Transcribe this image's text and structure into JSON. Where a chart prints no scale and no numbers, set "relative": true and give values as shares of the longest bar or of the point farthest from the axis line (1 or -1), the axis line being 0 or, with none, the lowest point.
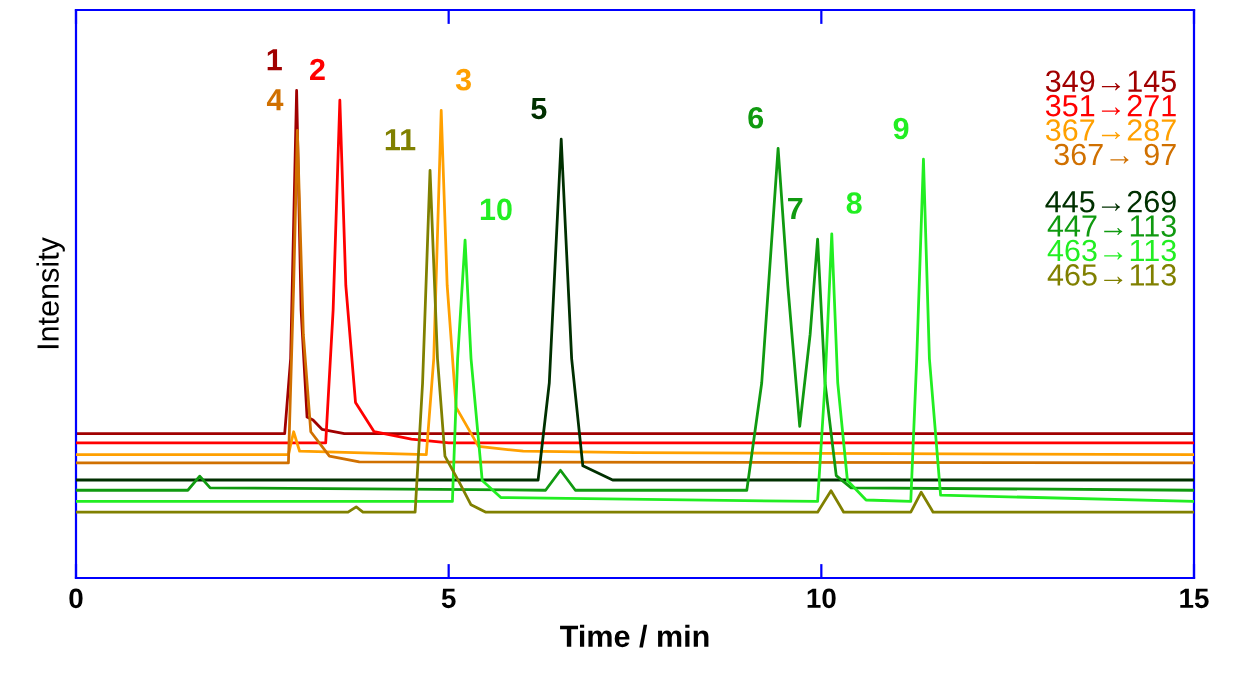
{
  "chart_data": {
    "type": "line",
    "relative": true,
    "xlabel": "Time / min",
    "ylabel": "Intensity",
    "xlim": [
      0,
      15
    ],
    "xticks": [
      0,
      5,
      10,
      15
    ],
    "tick_labels": "x",
    "grid": false,
    "legend": "top right",
    "marker": "none",
    "line_style": "solid",
    "series": [
      {
        "name": "349→145",
        "color": "#a00000",
        "x": [
          0,
          2.8,
          2.88,
          2.96,
          3.02,
          3.1,
          3.18,
          3.3,
          3.6,
          15
        ],
        "values": [
          0.296,
          0.296,
          0.45,
          1.0,
          0.55,
          0.33,
          0.324,
          0.305,
          0.296,
          0.296
        ]
      },
      {
        "name": "351→271",
        "color": "#ff0000",
        "x": [
          0,
          3.35,
          3.45,
          3.54,
          3.62,
          3.75,
          4.0,
          4.5,
          5,
          15
        ],
        "values": [
          0.277,
          0.277,
          0.55,
          0.98,
          0.6,
          0.36,
          0.3,
          0.285,
          0.277,
          0.277
        ]
      },
      {
        "name": "367→287",
        "color": "#ffa000",
        "x": [
          0,
          2.85,
          2.92,
          3.0,
          4.7,
          4.8,
          4.9,
          4.98,
          5.1,
          5.4,
          6,
          7.5,
          15
        ],
        "values": [
          0.253,
          0.253,
          0.3,
          0.26,
          0.253,
          0.45,
          0.959,
          0.6,
          0.35,
          0.27,
          0.26,
          0.257,
          0.253
        ]
      },
      {
        "name": "367→ 97",
        "color": "#d07000",
        "x": [
          0,
          2.85,
          2.92,
          2.97,
          3.05,
          3.15,
          3.4,
          3.8,
          15
        ],
        "values": [
          0.236,
          0.236,
          0.6,
          0.918,
          0.5,
          0.3,
          0.25,
          0.238,
          0.236
        ]
      },
      {
        "name": "445→269",
        "color": "#003000",
        "x": [
          0,
          6.2,
          6.35,
          6.51,
          6.65,
          6.8,
          7.2,
          15
        ],
        "values": [
          0.201,
          0.201,
          0.4,
          0.9,
          0.45,
          0.23,
          0.201,
          0.201
        ]
      },
      {
        "name": "447→113",
        "color": "#109a10",
        "x": [
          0,
          1.5,
          1.66,
          1.8,
          6.3,
          6.5,
          6.7,
          9.0,
          9.2,
          9.42,
          9.55,
          9.71,
          9.85,
          9.95,
          10.05,
          10.2,
          10.4,
          15
        ],
        "values": [
          0.18,
          0.18,
          0.209,
          0.185,
          0.18,
          0.221,
          0.18,
          0.18,
          0.4,
          0.881,
          0.6,
          0.311,
          0.5,
          0.695,
          0.4,
          0.21,
          0.185,
          0.18
        ]
      },
      {
        "name": "463→113",
        "color": "#22ee22",
        "x": [
          0,
          5.05,
          5.12,
          5.22,
          5.3,
          5.45,
          5.7,
          9.95,
          10.05,
          10.14,
          10.22,
          10.35,
          10.6,
          11.2,
          11.28,
          11.37,
          11.45,
          11.6,
          15
        ],
        "values": [
          0.157,
          0.157,
          0.45,
          0.693,
          0.45,
          0.2,
          0.165,
          0.157,
          0.4,
          0.706,
          0.4,
          0.2,
          0.16,
          0.157,
          0.45,
          0.859,
          0.45,
          0.17,
          0.157
        ]
      },
      {
        "name": "465→113",
        "color": "#808000",
        "x": [
          0,
          3.65,
          3.76,
          3.85,
          4.55,
          4.65,
          4.75,
          4.85,
          4.95,
          5.15,
          5.3,
          5.5,
          9.95,
          10.13,
          10.3,
          11.2,
          11.34,
          11.5,
          15
        ],
        "values": [
          0.135,
          0.135,
          0.146,
          0.135,
          0.135,
          0.4,
          0.836,
          0.45,
          0.25,
          0.194,
          0.15,
          0.135,
          0.135,
          0.179,
          0.135,
          0.135,
          0.176,
          0.135,
          0.135
        ]
      }
    ],
    "annotations": [
      {
        "text": "1",
        "x": 2.96,
        "y": 1.0
      },
      {
        "text": "2",
        "x": 3.54,
        "y": 0.98
      },
      {
        "text": "3",
        "x": 4.9,
        "y": 0.959
      },
      {
        "text": "4",
        "x": 2.97,
        "y": 0.918
      },
      {
        "text": "5",
        "x": 6.51,
        "y": 0.9
      },
      {
        "text": "6",
        "x": 9.42,
        "y": 0.881
      },
      {
        "text": "7",
        "x": 9.95,
        "y": 0.695
      },
      {
        "text": "8",
        "x": 10.14,
        "y": 0.706
      },
      {
        "text": "9",
        "x": 11.37,
        "y": 0.859
      },
      {
        "text": "10",
        "x": 5.22,
        "y": 0.693
      },
      {
        "text": "11",
        "x": 4.75,
        "y": 0.836
      }
    ]
  }
}
